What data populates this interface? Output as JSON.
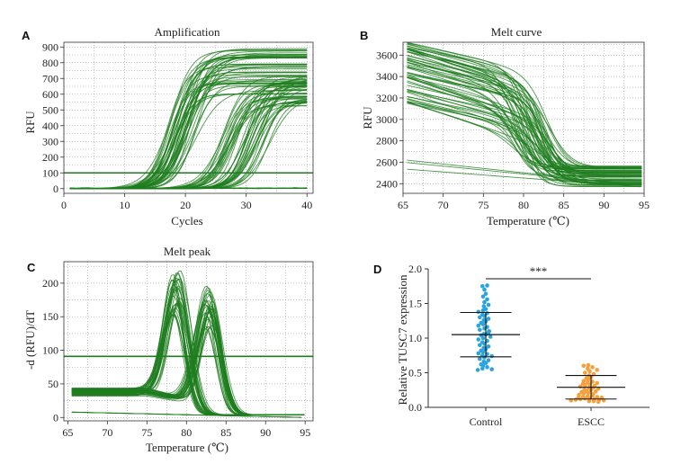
{
  "chart_data": [
    {
      "id": "A",
      "type": "line",
      "title": "Amplification",
      "xlabel": "Cycles",
      "ylabel": "RFU",
      "xlim": [
        0,
        41
      ],
      "ylim": [
        -30,
        930
      ],
      "xticks": [
        0,
        10,
        20,
        30,
        40
      ],
      "yticks": [
        0,
        100,
        200,
        300,
        400,
        500,
        600,
        700,
        800,
        900
      ],
      "grid": true,
      "color": "#1e7d1e",
      "threshold": 100,
      "curve_groups": [
        {
          "group": "early",
          "count": 44,
          "midpoint_range": [
            16.5,
            22
          ],
          "plateau_range": [
            600,
            890
          ]
        },
        {
          "group": "late",
          "count": 44,
          "midpoint_range": [
            26,
            34
          ],
          "plateau_range": [
            500,
            720
          ]
        },
        {
          "group": "negative",
          "count": 6,
          "midpoint_range": null,
          "plateau_range": [
            0,
            15
          ]
        }
      ]
    },
    {
      "id": "B",
      "type": "line",
      "title": "Melt curve",
      "xlabel": "Temperature (℃)",
      "ylabel": "RFU",
      "xlim": [
        65,
        95
      ],
      "ylim": [
        2310,
        3720
      ],
      "xticks": [
        65,
        70,
        75,
        80,
        85,
        90,
        95
      ],
      "yticks": [
        2400,
        2600,
        2800,
        3000,
        3200,
        3400,
        3600
      ],
      "grid": true,
      "color": "#1e7d1e",
      "curve_groups": [
        {
          "group": "target",
          "count": 60,
          "start_range": [
            3150,
            3720
          ],
          "transition_temp": [
            78.5,
            84
          ],
          "end_range": [
            2370,
            2570
          ]
        },
        {
          "group": "flat",
          "count": 3,
          "start_range": [
            2420,
            2630
          ],
          "end_range": [
            2340,
            2440
          ]
        }
      ]
    },
    {
      "id": "C",
      "type": "line",
      "title": "Melt peak",
      "xlabel": "Temperature (℃)",
      "ylabel": "-d (RFU)/dT",
      "xlim": [
        64.5,
        96
      ],
      "ylim": [
        -5,
        232
      ],
      "xticks": [
        65,
        70,
        75,
        80,
        85,
        90,
        95
      ],
      "yticks": [
        0,
        50,
        100,
        150,
        200
      ],
      "grid": true,
      "color": "#1e7d1e",
      "threshold": 91,
      "curve_groups": [
        {
          "group": "peak1",
          "count": 30,
          "peak_temp_range": [
            78.2,
            79.2
          ],
          "peak_height_range": [
            150,
            222
          ]
        },
        {
          "group": "peak2",
          "count": 30,
          "peak_temp_range": [
            82.3,
            83.3
          ],
          "peak_height_range": [
            130,
            200
          ]
        },
        {
          "group": "flat",
          "count": 4,
          "peak_temp_range": null,
          "peak_height_range": [
            0,
            8
          ]
        }
      ]
    },
    {
      "id": "D",
      "type": "scatter",
      "ylabel": "Relative TUSC7 expression",
      "categories": [
        "Control",
        "ESCC"
      ],
      "ylim": [
        0,
        2
      ],
      "yticks": [
        "0.0",
        "0.5",
        "1.0",
        "1.5",
        "2.0"
      ],
      "series": [
        {
          "category": "Control",
          "color": "#2aa3de",
          "mean": 1.05,
          "sd": 0.32,
          "values": [
            1.76,
            1.75,
            1.7,
            1.64,
            1.6,
            1.56,
            1.52,
            1.48,
            1.46,
            1.42,
            1.4,
            1.38,
            1.36,
            1.34,
            1.32,
            1.3,
            1.28,
            1.26,
            1.24,
            1.22,
            1.2,
            1.18,
            1.16,
            1.14,
            1.12,
            1.1,
            1.08,
            1.06,
            1.05,
            1.04,
            1.02,
            1.0,
            0.98,
            0.96,
            0.94,
            0.92,
            0.9,
            0.88,
            0.86,
            0.84,
            0.82,
            0.8,
            0.78,
            0.77,
            0.75,
            0.74,
            0.72,
            0.7,
            0.68,
            0.66,
            0.64,
            0.62,
            0.6,
            0.58,
            0.56,
            0.55,
            0.54
          ]
        },
        {
          "category": "ESCC",
          "color": "#f5a03a",
          "mean": 0.29,
          "sd": 0.17,
          "values": [
            0.61,
            0.6,
            0.58,
            0.56,
            0.54,
            0.52,
            0.5,
            0.48,
            0.46,
            0.44,
            0.42,
            0.4,
            0.38,
            0.37,
            0.36,
            0.35,
            0.34,
            0.33,
            0.32,
            0.31,
            0.3,
            0.29,
            0.28,
            0.27,
            0.26,
            0.25,
            0.24,
            0.23,
            0.22,
            0.21,
            0.2,
            0.19,
            0.18,
            0.17,
            0.16,
            0.15,
            0.15,
            0.14,
            0.14,
            0.13,
            0.13,
            0.12,
            0.12,
            0.11,
            0.11,
            0.1,
            0.1,
            0.09,
            0.09,
            0.08
          ]
        }
      ],
      "significance": "***"
    }
  ]
}
